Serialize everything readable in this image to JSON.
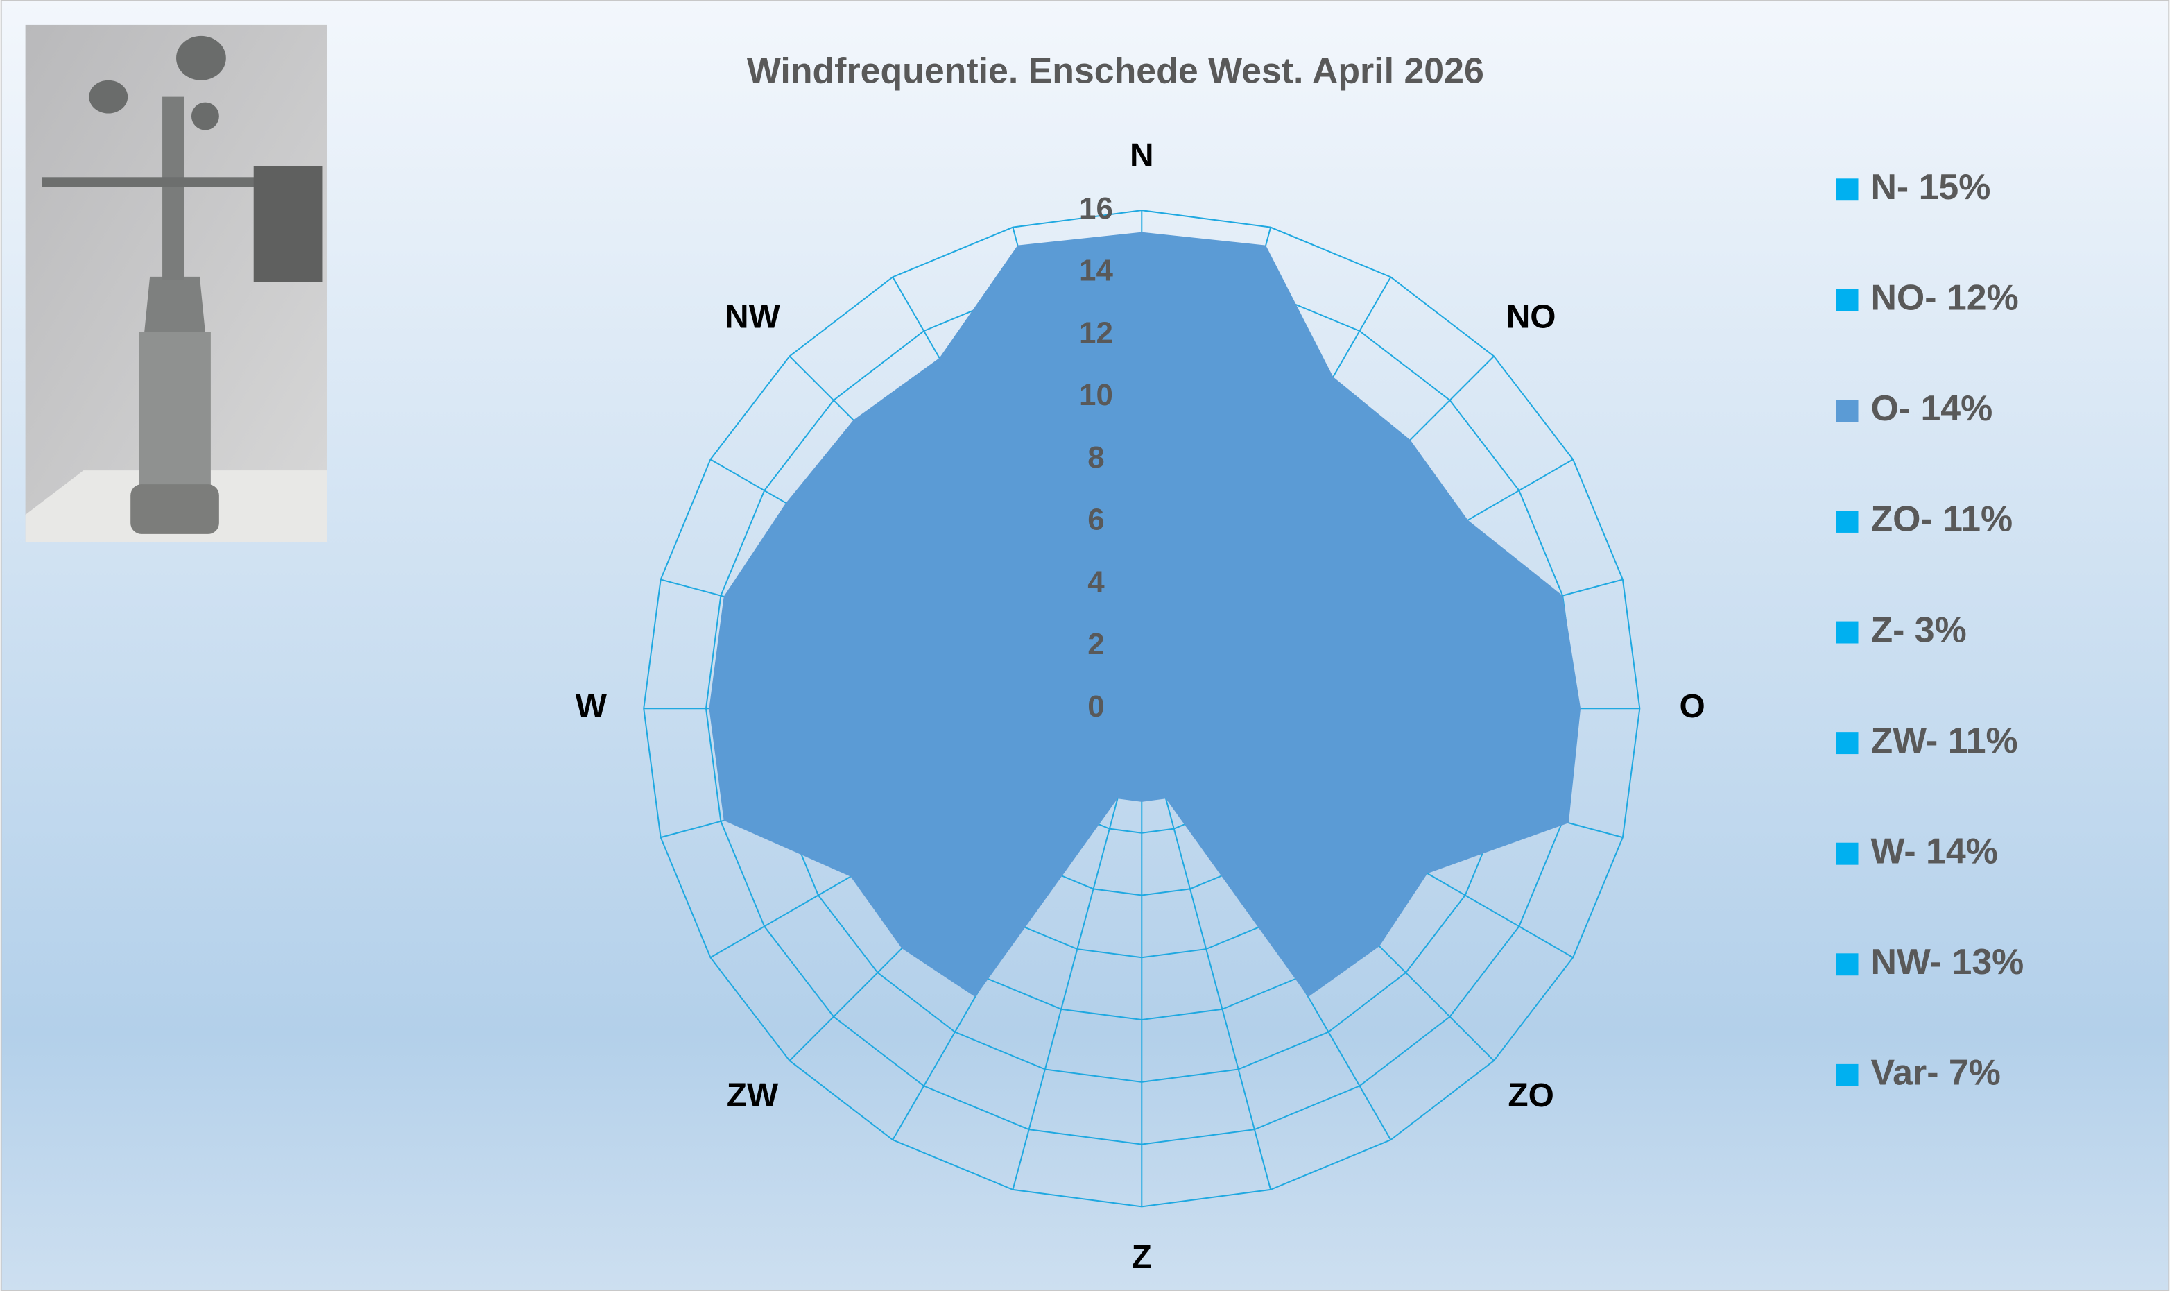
{
  "chart_data": {
    "type": "radar",
    "title": "Windfrequentie. Enschede West. April 2026",
    "categories": [
      "N",
      null,
      null,
      "NO",
      null,
      null,
      "O",
      null,
      null,
      "ZO",
      null,
      null,
      "Z",
      null,
      null,
      "ZW",
      null,
      null,
      "W",
      null,
      null,
      "NW",
      null,
      null
    ],
    "values": [
      15.3,
      15.4,
      12.3,
      12.2,
      12.1,
      14.0,
      14.1,
      14.2,
      10.6,
      10.8,
      10.7,
      3.0,
      3.0,
      3.0,
      10.7,
      10.9,
      10.8,
      13.9,
      13.9,
      13.9,
      13.2,
      13.1,
      13.0,
      15.4
    ],
    "color": "#5b9bd5",
    "grid_color": "#1fa8e0",
    "ylim": [
      0,
      16
    ],
    "yticks": [
      0,
      2,
      4,
      6,
      8,
      10,
      12,
      14,
      16
    ],
    "grid": true,
    "legend": [
      {
        "label": "N- 15%",
        "color": "#00b0f0"
      },
      {
        "label": "NO- 12%",
        "color": "#00b0f0"
      },
      {
        "label": "O- 14%",
        "color": "#5b9bd5"
      },
      {
        "label": "ZO- 11%",
        "color": "#00b0f0"
      },
      {
        "label": "Z- 3%",
        "color": "#00b0f0"
      },
      {
        "label": "ZW- 11%",
        "color": "#00b0f0"
      },
      {
        "label": "W- 14%",
        "color": "#00b0f0"
      },
      {
        "label": "NW- 13%",
        "color": "#00b0f0"
      },
      {
        "label": "Var- 7%",
        "color": "#00b0f0"
      }
    ],
    "legend_position": "right"
  }
}
